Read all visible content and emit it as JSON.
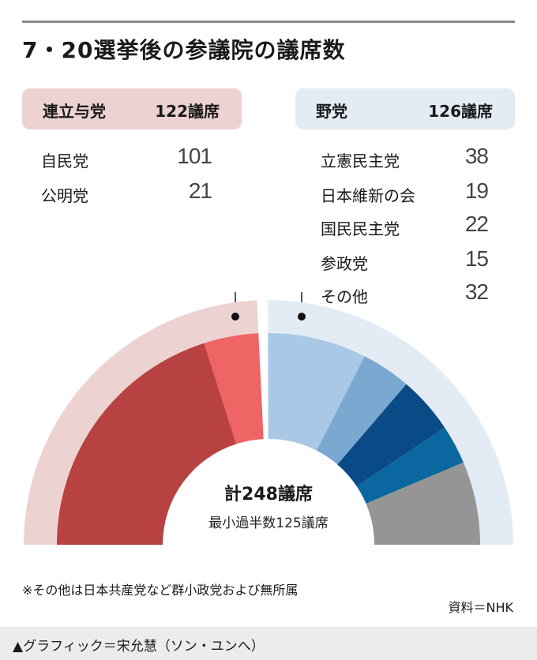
{
  "title": "7・20選挙後の参議院の議席数",
  "coalition": {
    "name": "連立与党",
    "total": "122議席",
    "parties": [
      {
        "name": "自民党",
        "seats": "101"
      },
      {
        "name": "公明党",
        "seats": "21"
      }
    ]
  },
  "opposition": {
    "name": "野党",
    "total": "126議席",
    "parties": [
      {
        "name": "立憲民主党",
        "seats": "38"
      },
      {
        "name": "日本維新の会",
        "seats": "19"
      },
      {
        "name": "国民民主党",
        "seats": "22"
      },
      {
        "name": "参政党",
        "seats": "15"
      },
      {
        "name": "その他",
        "seats": "32"
      }
    ]
  },
  "center": {
    "total": "計248議席",
    "majority": "最小過半数125議席"
  },
  "footnote": "※その他は日本共産党など群小政党および無所属",
  "source": "資料＝NHK",
  "credit": "▲グラフィック＝宋允慧（ソン・ユンへ）",
  "chart_data": {
    "type": "pie",
    "subtype": "semicircle-donut",
    "title": "7・20選挙後の参議院の議席数",
    "total_seats": 248,
    "majority": 125,
    "groups": [
      {
        "name": "連立与党",
        "total": 122,
        "color": "#ecd2d1"
      },
      {
        "name": "野党",
        "total": 126,
        "color": "#e3ecf5"
      }
    ],
    "slices": [
      {
        "label": "自民党",
        "value": 101,
        "group": "連立与党",
        "color": "#b84141"
      },
      {
        "label": "公明党",
        "value": 21,
        "group": "連立与党",
        "color": "#ef6464"
      },
      {
        "label": "立憲民主党",
        "value": 38,
        "group": "野党",
        "color": "#a9c8e5"
      },
      {
        "label": "日本維新の会",
        "value": 19,
        "group": "野党",
        "color": "#7aa8d1"
      },
      {
        "label": "国民民主党",
        "value": 22,
        "group": "野党",
        "color": "#0a4a86"
      },
      {
        "label": "参政党",
        "value": 15,
        "group": "野党",
        "color": "#0a679f"
      },
      {
        "label": "その他",
        "value": 32,
        "group": "野党",
        "color": "#959595"
      }
    ]
  }
}
